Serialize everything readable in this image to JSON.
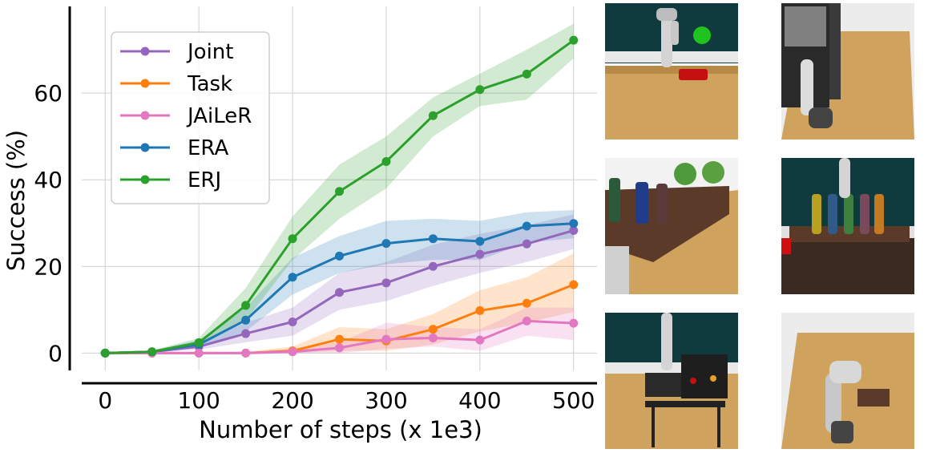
{
  "chart_data": {
    "type": "line",
    "title": "",
    "xlabel": "Number of steps (x 1e3)",
    "ylabel": "Success (%)",
    "x": [
      0,
      50,
      100,
      150,
      200,
      250,
      300,
      350,
      400,
      450,
      500
    ],
    "xticks": [
      "0",
      "100",
      "200",
      "300",
      "400",
      "500"
    ],
    "yticks": [
      "0",
      "20",
      "40",
      "60"
    ],
    "xlim": [
      -25,
      525
    ],
    "ylim": [
      -4,
      80
    ],
    "grid": true,
    "legend_position": "top-left",
    "series": [
      {
        "name": "Joint",
        "color": "#9467bd",
        "values": [
          0,
          0.3,
          1.5,
          4.5,
          7.2,
          14,
          16.2,
          20,
          22.8,
          25.2,
          28.3
        ],
        "lower": [
          0,
          0.1,
          0.8,
          2.5,
          4.0,
          10.0,
          12.0,
          15.5,
          18.5,
          21.0,
          24.0
        ],
        "upper": [
          0,
          0.6,
          2.5,
          7.0,
          10.5,
          18.5,
          21.0,
          25.0,
          27.5,
          29.5,
          32.0
        ]
      },
      {
        "name": "Task",
        "color": "#ff7f0e",
        "values": [
          0,
          0,
          0,
          0,
          0.5,
          3.2,
          2.8,
          5.5,
          9.8,
          11.5,
          15.8
        ],
        "lower": [
          0,
          0,
          0,
          0,
          0,
          0.5,
          0.5,
          2.0,
          5.0,
          7.0,
          9.5
        ],
        "upper": [
          0,
          0,
          0,
          0.3,
          1.5,
          6.0,
          5.5,
          9.0,
          14.5,
          17.5,
          23.0
        ]
      },
      {
        "name": "JAiLeR",
        "color": "#e377c2",
        "values": [
          0,
          0,
          0,
          0,
          0.3,
          1.2,
          3.2,
          3.5,
          3.0,
          7.4,
          6.9
        ],
        "lower": [
          0,
          0,
          0,
          0,
          0,
          0,
          1.0,
          1.5,
          0.5,
          4.0,
          3.0
        ],
        "upper": [
          0,
          0,
          0,
          0.2,
          1.0,
          2.5,
          7.0,
          6.0,
          5.5,
          10.5,
          10.5
        ]
      },
      {
        "name": "ERA",
        "color": "#1f77b4",
        "values": [
          0,
          0.3,
          2.0,
          7.6,
          17.5,
          22.4,
          25.3,
          26.4,
          25.8,
          29.3,
          29.9
        ],
        "lower": [
          0,
          0.1,
          1.2,
          5.0,
          13.5,
          18.5,
          20.5,
          21.5,
          21.5,
          25.5,
          26.5
        ],
        "upper": [
          0,
          0.6,
          3.0,
          10.5,
          22.0,
          27.0,
          30.5,
          31.0,
          30.5,
          32.5,
          33.0
        ]
      },
      {
        "name": "ERJ",
        "color": "#2ca02c",
        "values": [
          0,
          0.3,
          2.4,
          11.0,
          26.4,
          37.3,
          44.2,
          54.8,
          60.8,
          64.4,
          72.2
        ],
        "lower": [
          0,
          0.1,
          1.5,
          7.5,
          21.5,
          31.0,
          38.0,
          50.0,
          57.0,
          58.5,
          68.0
        ],
        "upper": [
          0,
          0.6,
          3.5,
          15.0,
          31.5,
          43.5,
          50.0,
          59.0,
          64.5,
          70.0,
          76.0
        ]
      }
    ]
  },
  "thumbnails": [
    {
      "name": "reach-target-scene",
      "wall": "#0f3a3e",
      "floor": "#cfa25e"
    },
    {
      "name": "open-oven-scene",
      "wall": "#e6e6e6",
      "floor": "#cfa25e"
    },
    {
      "name": "bottle-shelf-scene",
      "wall": "#f2f2f2",
      "floor": "#cfa25e"
    },
    {
      "name": "pick-bottle-scene",
      "wall": "#0f3a3e",
      "floor": "#cfa25e"
    },
    {
      "name": "grill-scene",
      "wall": "#0f3a3e",
      "floor": "#cfa25e"
    },
    {
      "name": "put-in-shelf-scene",
      "wall": "#e6e6e6",
      "floor": "#cfa25e"
    }
  ]
}
